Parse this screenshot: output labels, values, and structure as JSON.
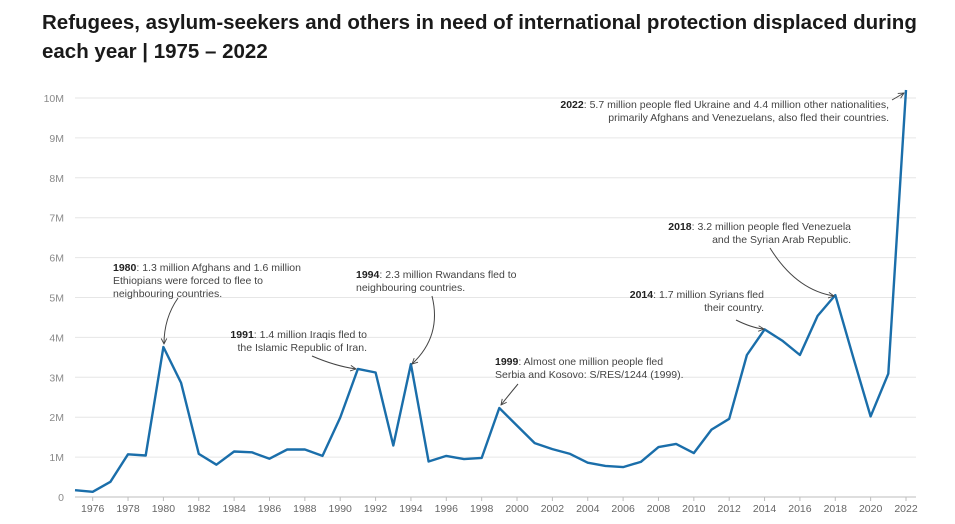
{
  "chart_data": {
    "type": "line",
    "title": "Refugees, asylum-seekers and others in need of international protection displaced during each year | 1975 – 2022",
    "xlabel": "",
    "ylabel": "",
    "xlim": [
      1975,
      2022
    ],
    "ylim": [
      0,
      10000000
    ],
    "grid": true,
    "line_color": "#1a6eaa",
    "yticks": [
      {
        "value": 0,
        "label": "0"
      },
      {
        "value": 1000000,
        "label": "1M"
      },
      {
        "value": 2000000,
        "label": "2M"
      },
      {
        "value": 3000000,
        "label": "3M"
      },
      {
        "value": 4000000,
        "label": "4M"
      },
      {
        "value": 5000000,
        "label": "5M"
      },
      {
        "value": 6000000,
        "label": "6M"
      },
      {
        "value": 7000000,
        "label": "7M"
      },
      {
        "value": 8000000,
        "label": "8M"
      },
      {
        "value": 9000000,
        "label": "9M"
      },
      {
        "value": 10000000,
        "label": "10M"
      }
    ],
    "xticks": [
      "1976",
      "1978",
      "1980",
      "1982",
      "1984",
      "1986",
      "1988",
      "1990",
      "1992",
      "1994",
      "1996",
      "1998",
      "2000",
      "2002",
      "2004",
      "2006",
      "2008",
      "2010",
      "2012",
      "2014",
      "2016",
      "2018",
      "2020",
      "2022"
    ],
    "series": [
      {
        "x": [
          1975,
          1976,
          1977,
          1978,
          1979,
          1980,
          1981,
          1982,
          1983,
          1984,
          1985,
          1986,
          1987,
          1988,
          1989,
          1990,
          1991,
          1992,
          1993,
          1994,
          1995,
          1996,
          1997,
          1998,
          1999,
          2000,
          2001,
          2002,
          2003,
          2004,
          2005,
          2006,
          2007,
          2008,
          2009,
          2010,
          2011,
          2012,
          2013,
          2014,
          2015,
          2016,
          2017,
          2018,
          2019,
          2020,
          2021,
          2022
        ],
        "y": [
          170000,
          130000,
          380000,
          1070000,
          1040000,
          3760000,
          2860000,
          1080000,
          810000,
          1140000,
          1120000,
          960000,
          1190000,
          1190000,
          1030000,
          1990000,
          3210000,
          3120000,
          1290000,
          3330000,
          890000,
          1030000,
          950000,
          980000,
          2230000,
          1790000,
          1350000,
          1200000,
          1080000,
          860000,
          780000,
          750000,
          880000,
          1250000,
          1330000,
          1100000,
          1690000,
          1960000,
          3560000,
          4200000,
          3920000,
          3560000,
          4540000,
          5060000,
          3520000,
          2020000,
          3090000,
          10200000
        ]
      }
    ],
    "annotations": [
      {
        "year": "1980",
        "lines": [
          "1.3 million Afghans and 1.6 million",
          "Ethiopians were forced to flee to",
          "neighbouring countries."
        ]
      },
      {
        "year": "1991",
        "lines": [
          "1.4 million Iraqis fled to",
          "the Islamic Republic of Iran."
        ]
      },
      {
        "year": "1994",
        "lines": [
          "2.3 million Rwandans fled to",
          "neighbouring countries."
        ]
      },
      {
        "year": "1999",
        "lines": [
          "Almost one million people fled",
          "Serbia and Kosovo: S/RES/1244 (1999)."
        ]
      },
      {
        "year": "2014",
        "lines": [
          "1.7 million Syrians fled",
          "their country."
        ]
      },
      {
        "year": "2018",
        "lines": [
          "3.2 million people fled Venezuela",
          "and the Syrian Arab Republic."
        ]
      },
      {
        "year": "2022",
        "lines": [
          "5.7 million people fled Ukraine and 4.4 million other nationalities,",
          "primarily Afghans and Venezuelans, also fled their countries."
        ]
      }
    ]
  }
}
